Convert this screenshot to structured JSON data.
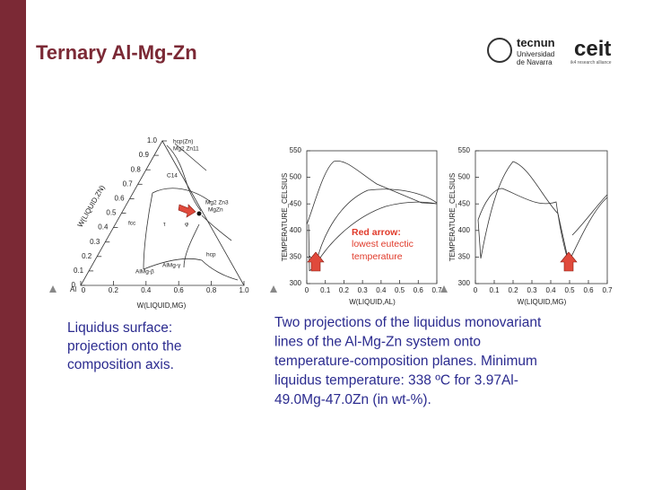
{
  "header": {
    "title": "Ternary Al-Mg-Zn",
    "logo_left": [
      "tecnun",
      "Universidad",
      "de Navarra"
    ],
    "logo_right": [
      "ceit",
      "ik4 research alliance"
    ]
  },
  "ternary": {
    "corner": "Al",
    "x_label": "W(LIQUID,MG)",
    "y_label": "W(LIQUID,ZN)",
    "left_ticks": [
      "0",
      "0.1",
      "0.2",
      "0.3",
      "0.4",
      "0.5",
      "0.6",
      "0.7",
      "0.8",
      "0.9",
      "1.0"
    ],
    "bottom_ticks": [
      "0",
      "0.2",
      "0.4",
      "0.6",
      "0.8",
      "1.0"
    ],
    "phases": [
      "hcp(Zn)",
      "Mg2 Zn11",
      "C14",
      "Mg2 Zn3",
      "MgZn",
      "fcc",
      "τ",
      "φ",
      "hcp",
      "AlMg-γ",
      "AlMg-β"
    ]
  },
  "plot_al": {
    "y_label": "TEMPERATURE_CELSIUS",
    "x_label": "W(LIQUID,AL)",
    "yticks": [
      "300",
      "350",
      "400",
      "450",
      "500",
      "550"
    ],
    "xticks": [
      "0",
      "0.1",
      "0.2",
      "0.3",
      "0.4",
      "0.5",
      "0.6",
      "0.7"
    ],
    "annotation": [
      "Red arrow:",
      "lowest eutectic",
      "temperature"
    ]
  },
  "plot_mg": {
    "y_label": "TEMPERATURE_CELSIUS",
    "x_label": "W(LIQUID,MG)",
    "yticks": [
      "300",
      "350",
      "400",
      "450",
      "500",
      "550"
    ],
    "xticks": [
      "0",
      "0.1",
      "0.2",
      "0.3",
      "0.4",
      "0.5",
      "0.6",
      "0.7"
    ]
  },
  "captions": {
    "left": [
      "Liquidus surface:",
      "projection onto the",
      "composition axis."
    ],
    "right": [
      "Two projections of the liquidus monovariant",
      "lines of the Al-Mg-Zn system onto",
      "temperature-composition planes. Minimum",
      "liquidus temperature: 338 ºC for 3.97Al-",
      "49.0Mg-47.0Zn (in wt-%)."
    ]
  }
}
